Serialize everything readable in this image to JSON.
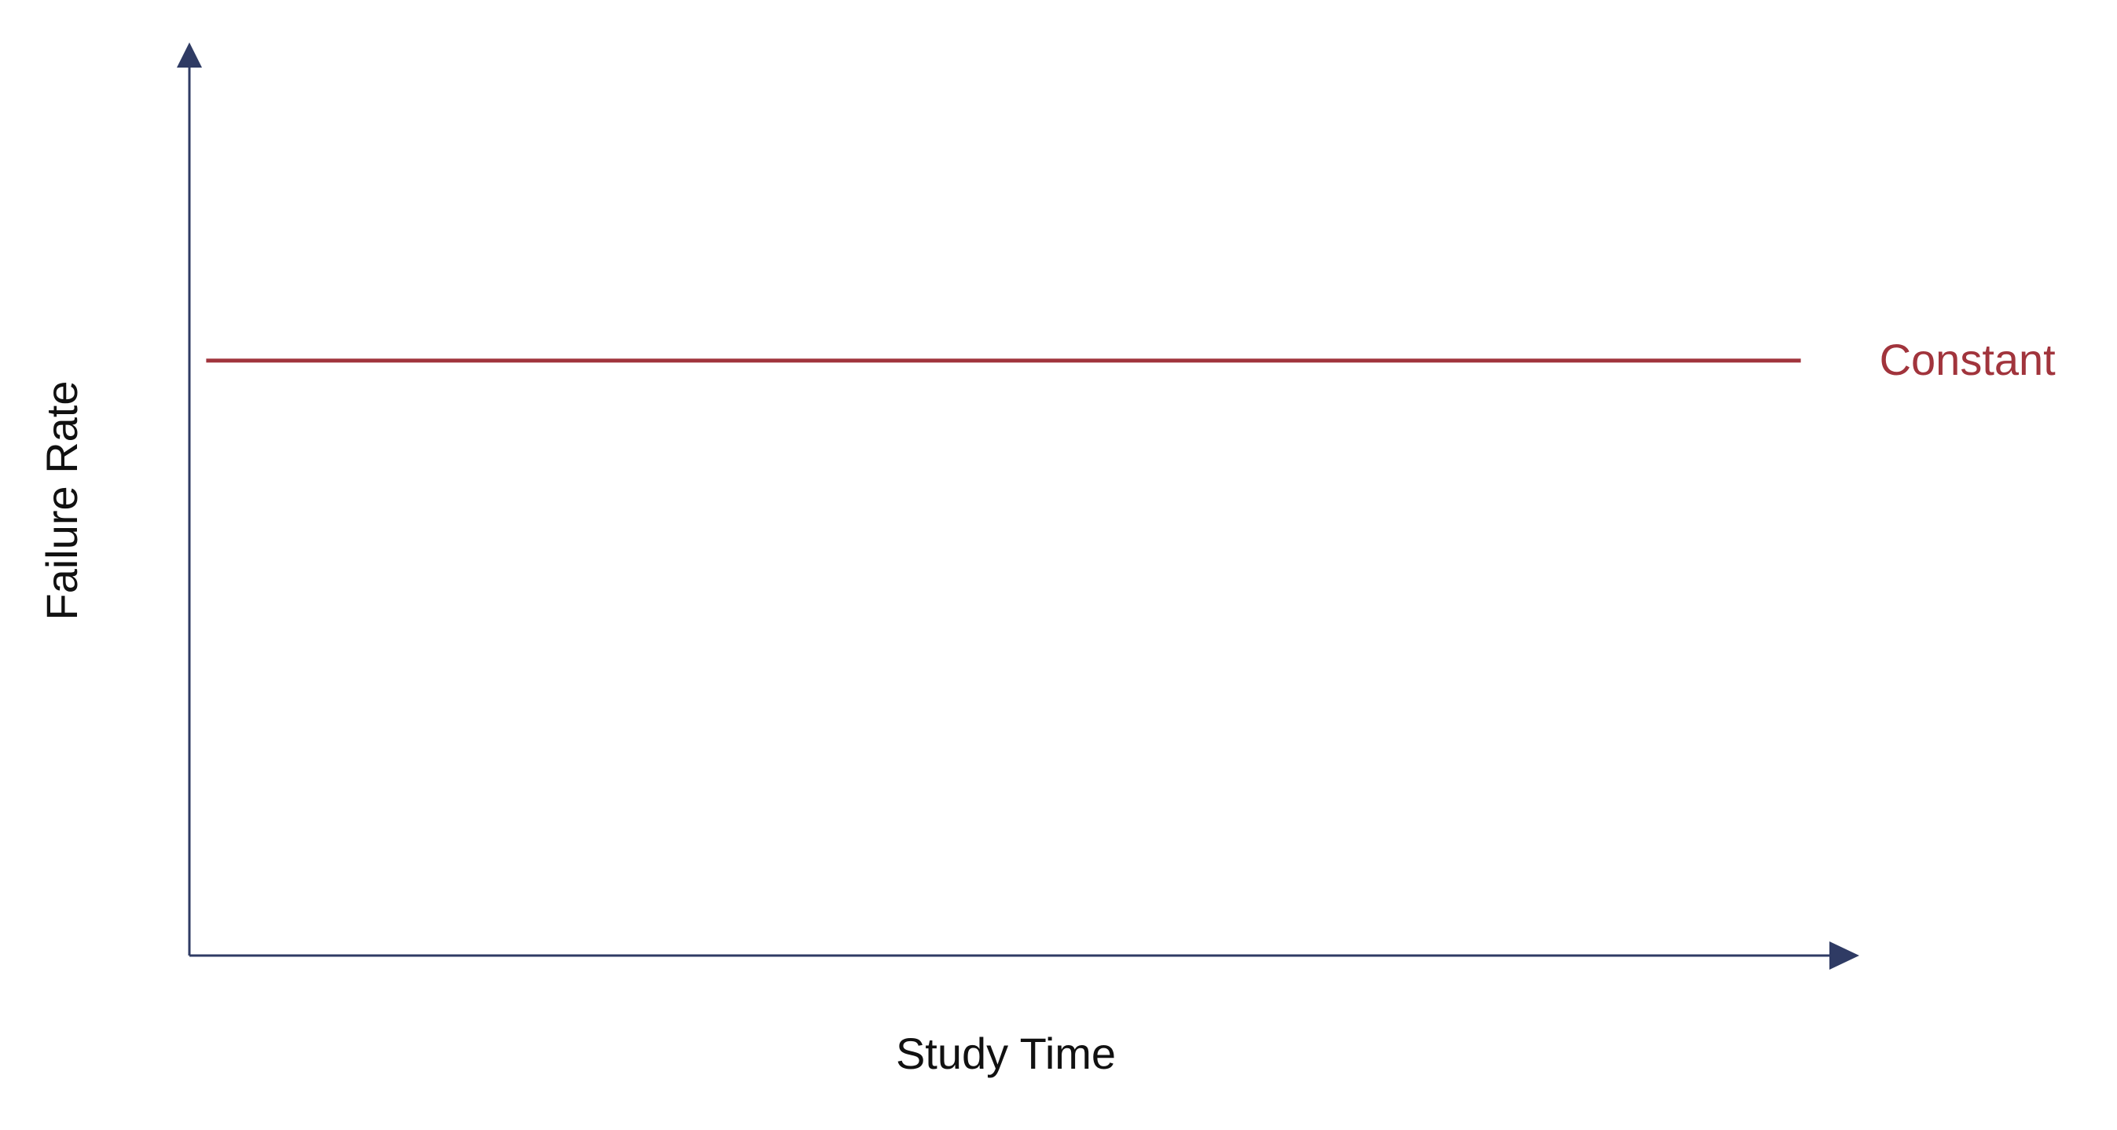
{
  "chart_data": {
    "type": "line",
    "title": "",
    "xlabel": "Study Time",
    "ylabel": "Failure Rate",
    "xlim": [
      0,
      1
    ],
    "ylim": [
      0,
      1
    ],
    "grid": false,
    "legend": "none",
    "series": [
      {
        "label": "Constant",
        "color": "#a1343c",
        "x": [
          0.01,
          0.96
        ],
        "y": [
          0.67,
          0.67
        ]
      }
    ]
  },
  "colors": {
    "axis": "#2f3b64",
    "text": "#111111",
    "background": "#ffffff"
  }
}
